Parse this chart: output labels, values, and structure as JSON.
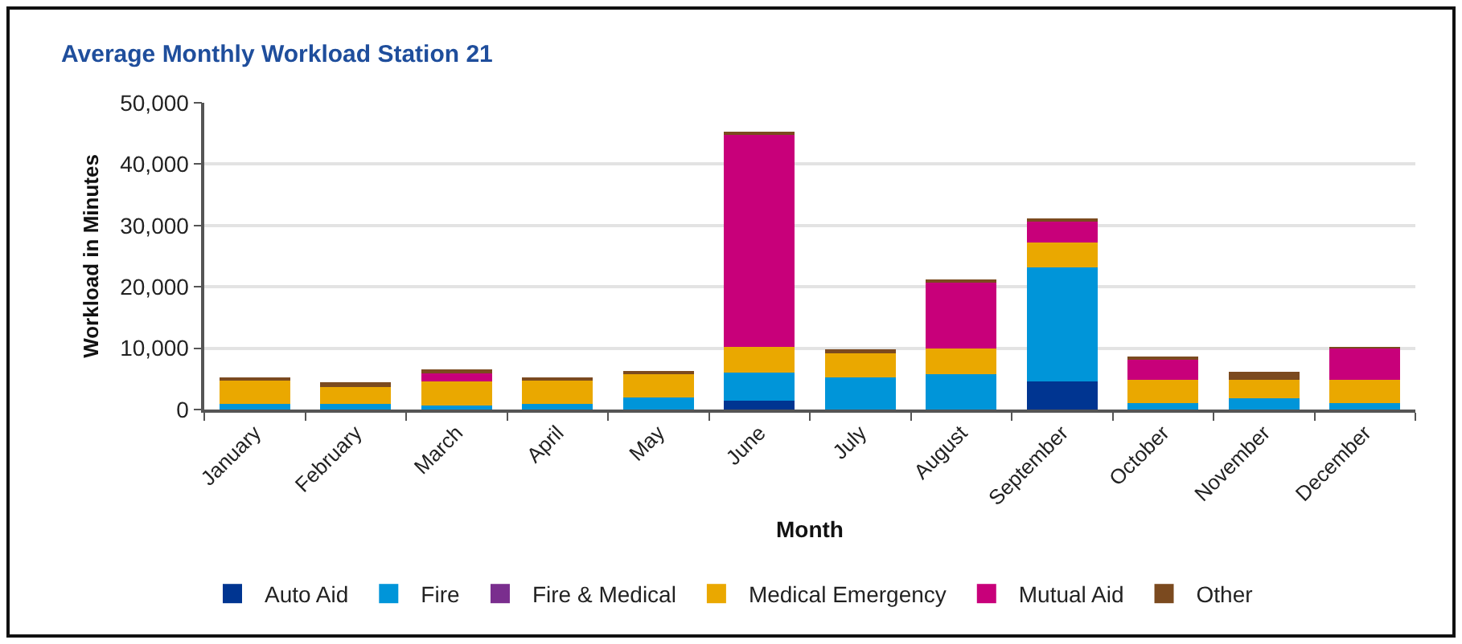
{
  "chart_data": {
    "type": "bar",
    "title": "Average Monthly Workload Station 21",
    "xlabel": "Month",
    "ylabel": "Workload in Minutes",
    "categories": [
      "January",
      "February",
      "March",
      "April",
      "May",
      "June",
      "July",
      "August",
      "September",
      "October",
      "November",
      "December"
    ],
    "series": [
      {
        "name": "Auto Aid",
        "color": "#003591",
        "values": [
          null,
          null,
          null,
          null,
          null,
          1400,
          null,
          null,
          4600,
          null,
          null,
          null
        ]
      },
      {
        "name": "Fire",
        "color": "#0095d9",
        "values": [
          900,
          900,
          700,
          900,
          2000,
          4600,
          5300,
          5800,
          18600,
          1100,
          1800,
          1100
        ]
      },
      {
        "name": "Fire & Medical",
        "color": "#7a2e8e",
        "values": [
          null,
          null,
          null,
          null,
          null,
          null,
          null,
          null,
          null,
          null,
          null,
          null
        ]
      },
      {
        "name": "Medical Emergency",
        "color": "#eaa800",
        "values": [
          4000,
          3000,
          3900,
          4000,
          4000,
          4200,
          4000,
          4100,
          4000,
          3700,
          3000,
          3800
        ]
      },
      {
        "name": "Mutual Aid",
        "color": "#c8007a",
        "values": [
          null,
          null,
          1300,
          null,
          null,
          34800,
          null,
          11000,
          3600,
          3500,
          null,
          5200
        ]
      },
      {
        "name": "Other",
        "color": "#7b4a1f",
        "values": [
          200,
          500,
          700,
          200,
          300,
          300,
          500,
          200,
          300,
          400,
          1300,
          100
        ]
      }
    ],
    "stacked": true,
    "ylim": [
      0,
      50000
    ],
    "yticks": [
      0,
      {
        "value": 10000,
        "label": "10,000"
      },
      {
        "value": 20000,
        "label": "20,000"
      },
      {
        "value": 30000,
        "label": "30,000"
      },
      {
        "value": 40000,
        "label": "40,000"
      },
      {
        "value": 50000,
        "label": "50,000"
      }
    ],
    "grid": "y",
    "legend": "bottom"
  }
}
